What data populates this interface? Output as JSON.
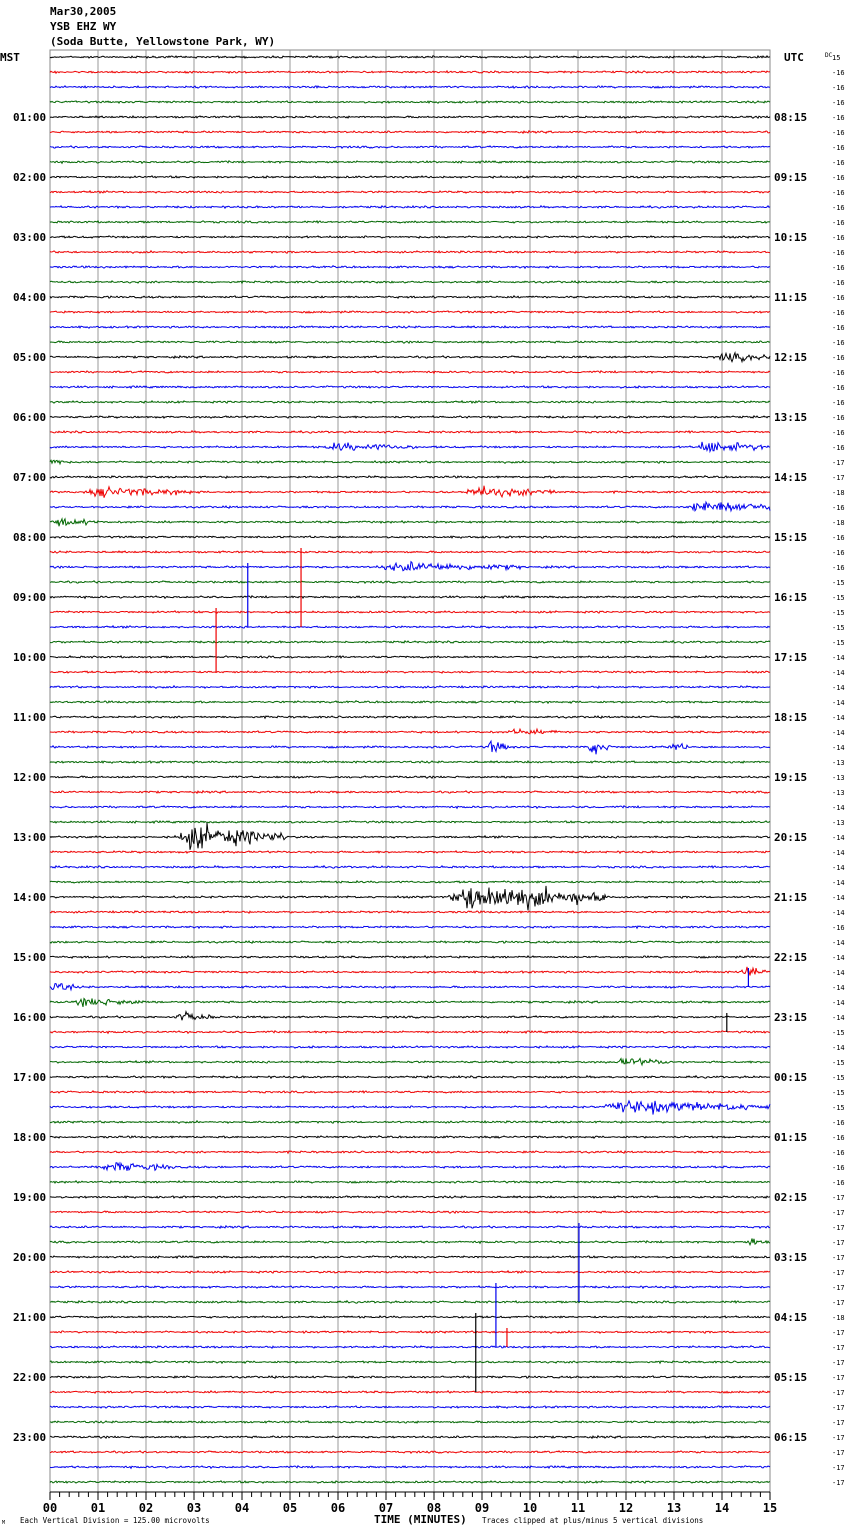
{
  "header": {
    "date": "Mar30,2005",
    "station": "YSB EHZ WY",
    "location": "(Soda Butte, Yellowstone Park, WY)"
  },
  "chart_data": {
    "type": "line",
    "subtype": "helicorder",
    "title": "YSB EHZ WY",
    "xlabel": "TIME (MINUTES)",
    "xlim": [
      0,
      15
    ],
    "x_ticks": [
      "00",
      "01",
      "02",
      "03",
      "04",
      "05",
      "06",
      "07",
      "08",
      "09",
      "10",
      "11",
      "12",
      "13",
      "14",
      "15"
    ],
    "left_axis_title": "MST",
    "right_axis_title": "UTC",
    "dc_label": "DC",
    "left_labels": [
      "01:00",
      "02:00",
      "03:00",
      "04:00",
      "05:00",
      "06:00",
      "07:00",
      "08:00",
      "09:00",
      "10:00",
      "11:00",
      "12:00",
      "13:00",
      "14:00",
      "15:00",
      "16:00",
      "17:00",
      "18:00",
      "19:00",
      "20:00",
      "21:00",
      "22:00",
      "23:00"
    ],
    "right_labels": [
      "08:15",
      "09:15",
      "10:15",
      "11:15",
      "12:15",
      "13:15",
      "14:15",
      "15:15",
      "16:15",
      "17:15",
      "18:15",
      "19:15",
      "20:15",
      "21:15",
      "22:15",
      "23:15",
      "00:15",
      "01:15",
      "02:15",
      "03:15",
      "04:15",
      "05:15",
      "06:15"
    ],
    "trace_count": 96,
    "trace_colors": [
      "#000000",
      "#ee0000",
      "#0000ee",
      "#006600"
    ],
    "dc_values": [
      "15",
      "-16",
      "-16",
      "-16",
      "-16",
      "-16",
      "-16",
      "-16",
      "-16",
      "-16",
      "-16",
      "-16",
      "-16",
      "-16",
      "-16",
      "-16",
      "-16",
      "-16",
      "-16",
      "-16",
      "-16",
      "-16",
      "-16",
      "-16",
      "-16",
      "-16",
      "-16",
      "-17",
      "-17",
      "-18",
      "-16",
      "-18",
      "-16",
      "-16",
      "-16",
      "-15",
      "-15",
      "-15",
      "-15",
      "-15",
      "-14",
      "-14",
      "-14",
      "-14",
      "-14",
      "-14",
      "-14",
      "-13",
      "-13",
      "-13",
      "-14",
      "-13",
      "-14",
      "-14",
      "-14",
      "-14",
      "-14",
      "-14",
      "-16",
      "-14",
      "-14",
      "-14",
      "-14",
      "-14",
      "-14",
      "-15",
      "-14",
      "-15",
      "-15",
      "-15",
      "-15",
      "-16",
      "-16",
      "-16",
      "-16",
      "-16",
      "-17",
      "-17",
      "-17",
      "-17",
      "-17",
      "-17",
      "-17",
      "-17",
      "-18",
      "-17",
      "-17",
      "-17",
      "-17",
      "-17",
      "-17",
      "-17",
      "-17",
      "-17",
      "-17",
      "-17"
    ],
    "events": [
      {
        "trace": 20,
        "start": 13.9,
        "end": 15,
        "amp": 0.35
      },
      {
        "trace": 26,
        "start": 5.7,
        "end": 7.6,
        "amp": 0.3
      },
      {
        "trace": 26,
        "start": 13.4,
        "end": 15,
        "amp": 0.45
      },
      {
        "trace": 27,
        "start": 0,
        "end": 0.3,
        "amp": 0.3
      },
      {
        "trace": 29,
        "start": 0.7,
        "end": 3.0,
        "amp": 0.35
      },
      {
        "trace": 29,
        "start": 8.6,
        "end": 10.6,
        "amp": 0.4
      },
      {
        "trace": 30,
        "start": 13.3,
        "end": 15,
        "amp": 0.55
      },
      {
        "trace": 31,
        "start": 0,
        "end": 1.0,
        "amp": 0.3
      },
      {
        "trace": 34,
        "start": 6.8,
        "end": 9.8,
        "amp": 0.35
      },
      {
        "trace": 45,
        "start": 9.5,
        "end": 10.6,
        "amp": 0.2
      },
      {
        "trace": 46,
        "start": 9.1,
        "end": 9.6,
        "amp": 0.5
      },
      {
        "trace": 46,
        "start": 11.2,
        "end": 11.7,
        "amp": 0.55
      },
      {
        "trace": 46,
        "start": 12.8,
        "end": 13.3,
        "amp": 0.35
      },
      {
        "trace": 52,
        "start": 2.6,
        "end": 4.9,
        "amp": 1.0
      },
      {
        "trace": 56,
        "start": 8.3,
        "end": 11.6,
        "amp": 1.2
      },
      {
        "trace": 61,
        "start": 14.4,
        "end": 15,
        "amp": 0.4
      },
      {
        "trace": 62,
        "start": 0,
        "end": 0.5,
        "amp": 0.4
      },
      {
        "trace": 63,
        "start": 0.5,
        "end": 2.0,
        "amp": 0.3
      },
      {
        "trace": 64,
        "start": 2.6,
        "end": 3.4,
        "amp": 0.35
      },
      {
        "trace": 67,
        "start": 11.8,
        "end": 12.9,
        "amp": 0.3
      },
      {
        "trace": 70,
        "start": 11.5,
        "end": 15,
        "amp": 0.5
      },
      {
        "trace": 74,
        "start": 1.0,
        "end": 2.6,
        "amp": 0.35
      },
      {
        "trace": 79,
        "start": 14.5,
        "end": 15,
        "amp": 0.25
      }
    ],
    "spikes": [
      {
        "trace": 34,
        "minute": 4.12,
        "color": "#0000ee",
        "to_trace": 38
      },
      {
        "trace": 33,
        "minute": 5.23,
        "color": "#ee0000",
        "to_trace": 38
      },
      {
        "trace": 37,
        "minute": 3.46,
        "color": "#ee0000",
        "to_trace": 41
      },
      {
        "trace": 61,
        "minute": 14.55,
        "color": "#0000ee",
        "to_trace": 62
      },
      {
        "trace": 64,
        "minute": 14.1,
        "color": "#000000",
        "to_trace": 65
      },
      {
        "trace": 78,
        "minute": 11.02,
        "color": "#0000ee",
        "to_trace": 83
      },
      {
        "trace": 82,
        "minute": 9.29,
        "color": "#0000ee",
        "to_trace": 86
      },
      {
        "trace": 85,
        "minute": 9.52,
        "color": "#ee0000",
        "to_trace": 86
      },
      {
        "trace": 84,
        "minute": 8.87,
        "color": "#000000",
        "to_trace": 89
      }
    ],
    "footer_left": "Each Vertical Division =  125.00 microvolts",
    "footer_right": "Traces clipped at plus/minus 5 vertical divisions",
    "corner_mark": "M"
  }
}
